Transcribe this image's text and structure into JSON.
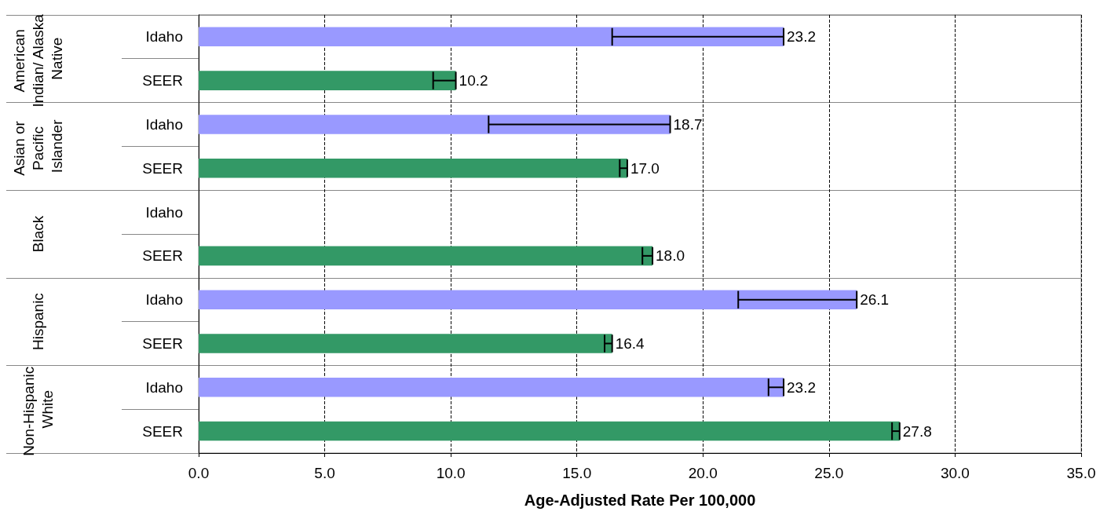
{
  "chart_data": {
    "type": "bar",
    "orientation": "horizontal",
    "xlabel": "Age-Adjusted Rate Per 100,000",
    "categories": [
      "American Indian/ Alaska Native",
      "Asian or Pacific Islander",
      "Black",
      "Hispanic",
      "Non-Hispanic White"
    ],
    "series": [
      {
        "name": "Idaho",
        "color": "#9999ff",
        "values": [
          23.2,
          18.7,
          null,
          26.1,
          23.2
        ],
        "value_labels": [
          "23.2",
          "18.7",
          null,
          "26.1",
          "23.2"
        ],
        "errors": [
          [
            16.4,
            23.2
          ],
          [
            11.5,
            18.7
          ],
          null,
          [
            21.4,
            26.1
          ],
          [
            22.6,
            23.2
          ]
        ]
      },
      {
        "name": "SEER",
        "color": "#339966",
        "values": [
          10.2,
          17.0,
          18.0,
          16.4,
          27.8
        ],
        "value_labels": [
          "10.2",
          "17.0",
          "18.0",
          "16.4",
          "27.8"
        ],
        "errors": [
          [
            9.3,
            10.2
          ],
          [
            16.7,
            17.0
          ],
          [
            17.6,
            18.0
          ],
          [
            16.1,
            16.4
          ],
          [
            27.5,
            27.8
          ]
        ]
      }
    ],
    "xlim": [
      0,
      35
    ],
    "xticks": [
      {
        "value": 0,
        "label": "0.0"
      },
      {
        "value": 5,
        "label": "5.0"
      },
      {
        "value": 10,
        "label": "10.0"
      },
      {
        "value": 15,
        "label": "15.0"
      },
      {
        "value": 20,
        "label": "20.0"
      },
      {
        "value": 25,
        "label": "25.0"
      },
      {
        "value": 30,
        "label": "30.0"
      },
      {
        "value": 35,
        "label": "35.0"
      }
    ],
    "grid": true
  }
}
